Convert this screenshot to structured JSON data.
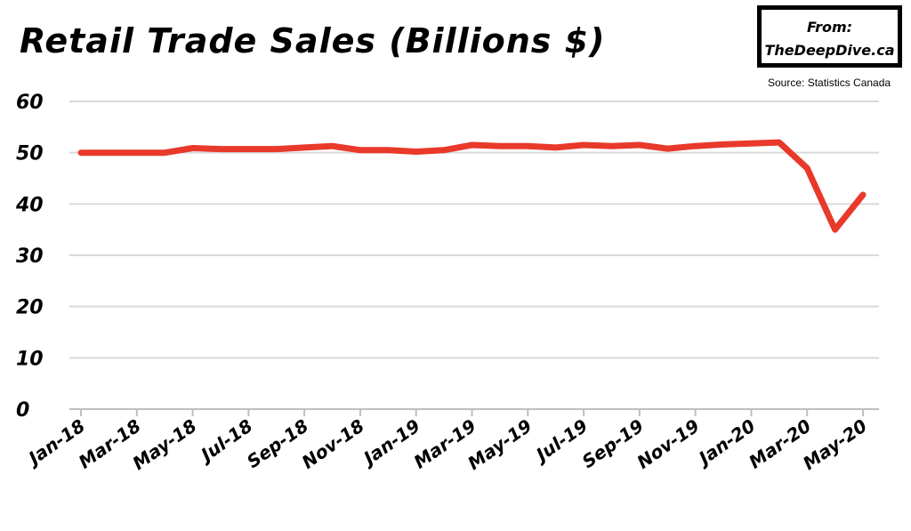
{
  "header": {
    "title": "Retail Trade Sales (Billions $)",
    "from_line1": "From:",
    "from_line2": "TheDeepDive.ca",
    "source": "Source: Statistics Canada"
  },
  "colors": {
    "line": "#e8392b",
    "grid": "#d9d9d9",
    "text": "#000000"
  },
  "chart_data": {
    "type": "line",
    "title": "Retail Trade Sales (Billions $)",
    "xlabel": "",
    "ylabel": "",
    "ylim": [
      0,
      60
    ],
    "yticks": [
      0,
      10,
      20,
      30,
      40,
      50,
      60
    ],
    "grid": true,
    "x": [
      "Jan-18",
      "Feb-18",
      "Mar-18",
      "Apr-18",
      "May-18",
      "Jun-18",
      "Jul-18",
      "Aug-18",
      "Sep-18",
      "Oct-18",
      "Nov-18",
      "Dec-18",
      "Jan-19",
      "Feb-19",
      "Mar-19",
      "Apr-19",
      "May-19",
      "Jun-19",
      "Jul-19",
      "Aug-19",
      "Sep-19",
      "Oct-19",
      "Nov-19",
      "Dec-19",
      "Jan-20",
      "Feb-20",
      "Mar-20",
      "Apr-20",
      "May-20"
    ],
    "x_tick_labels": [
      "Jan-18",
      "Mar-18",
      "May-18",
      "Jul-18",
      "Sep-18",
      "Nov-18",
      "Jan-19",
      "Mar-19",
      "May-19",
      "Jul-19",
      "Sep-19",
      "Nov-19",
      "Jan-20",
      "Mar-20",
      "May-20"
    ],
    "series": [
      {
        "values": [
          50.0,
          50.0,
          50.0,
          50.0,
          50.9,
          50.7,
          50.7,
          50.7,
          51.0,
          51.3,
          50.5,
          50.5,
          50.2,
          50.5,
          51.5,
          51.3,
          51.3,
          51.0,
          51.5,
          51.3,
          51.5,
          50.8,
          51.3,
          51.6,
          51.8,
          52.0,
          47.0,
          35.0,
          41.8
        ]
      }
    ]
  }
}
